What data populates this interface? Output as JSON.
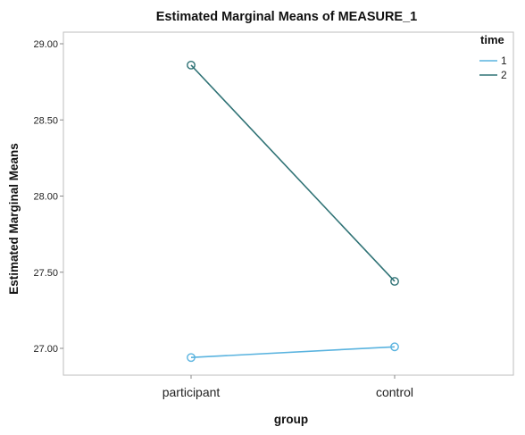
{
  "chart_data": {
    "type": "line",
    "title": "Estimated Marginal Means of MEASURE_1",
    "xlabel": "group",
    "ylabel": "Estimated Marginal Means",
    "categories": [
      "participant",
      "control"
    ],
    "yticks": [
      "27.00",
      "27.50",
      "28.00",
      "28.50",
      "29.00"
    ],
    "ylim": [
      26.87,
      29.12
    ],
    "legend": {
      "title": "time",
      "placement": "top-right"
    },
    "grid": false,
    "series": [
      {
        "name": "1",
        "values": [
          26.94,
          27.01
        ],
        "color": "#59b3df"
      },
      {
        "name": "2",
        "values": [
          28.86,
          27.44
        ],
        "color": "#2f7275"
      }
    ]
  }
}
